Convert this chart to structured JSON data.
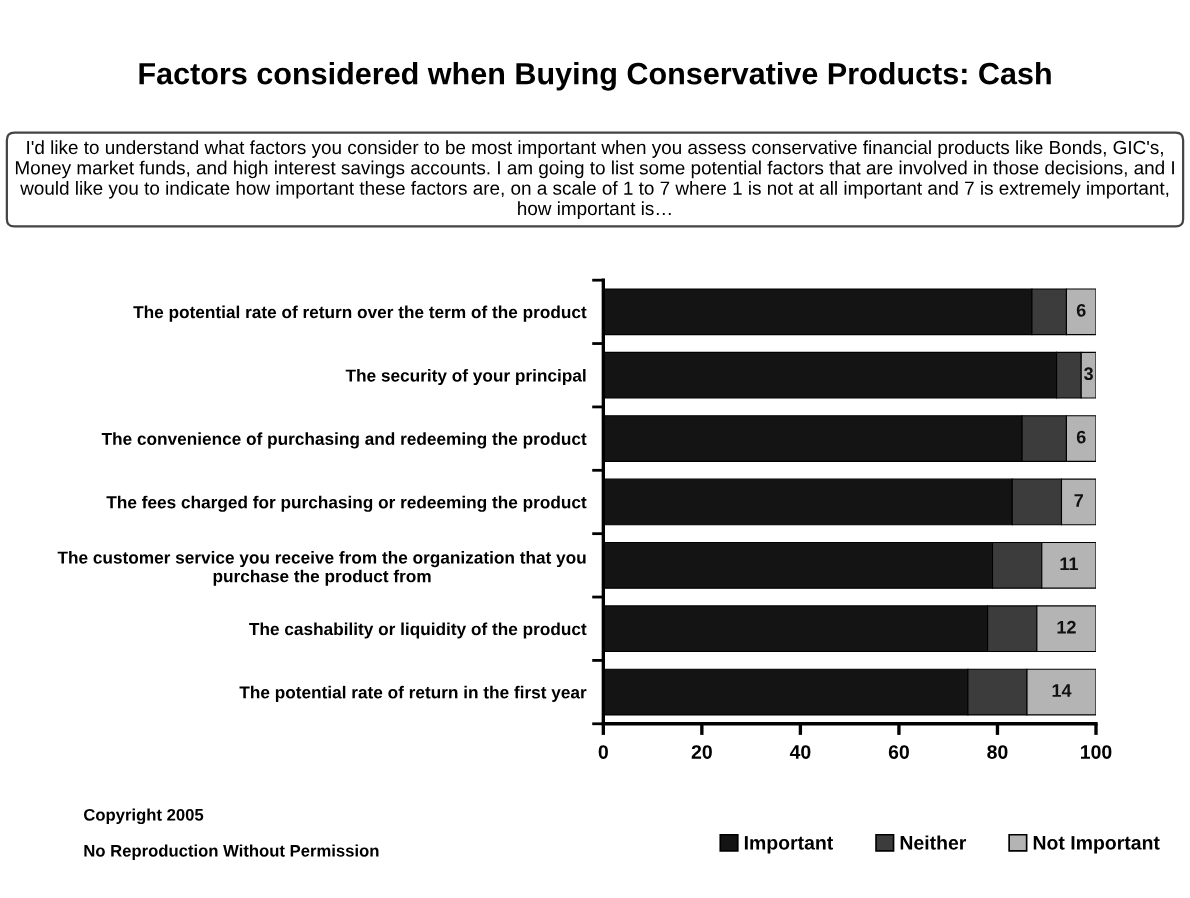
{
  "chart_data": {
    "type": "bar",
    "orientation": "horizontal",
    "stacked": true,
    "title": "Factors considered when Buying Conservative Products: Cash",
    "subtitle": "I'd like to understand what factors you consider to be most important when you assess conservative financial products like Bonds, GIC's, Money market funds, and high interest savings accounts. I am going to list some potential factors that are involved in those decisions, and I would like you to indicate how important these factors are, on a scale of 1 to 7 where 1 is not at all important and 7 is extremely important, how important is…",
    "categories": [
      "The potential rate of return over the term of the product",
      "The security of your principal",
      "The convenience of purchasing and redeeming the product",
      "The fees charged for purchasing or redeeming the product",
      "The customer service you receive from the organization that you\npurchase the product from",
      "The cashability or liquidity of the product",
      "The potential rate of return in the first year"
    ],
    "series": [
      {
        "name": "Important",
        "color": "#141414",
        "values": [
          87,
          92,
          85,
          83,
          79,
          78,
          74
        ]
      },
      {
        "name": "Neither",
        "color": "#3c3c3c",
        "values": [
          7,
          5,
          9,
          10,
          10,
          10,
          12
        ]
      },
      {
        "name": "Not Important",
        "color": "#b4b4b4",
        "values": [
          6,
          3,
          6,
          7,
          11,
          12,
          14
        ],
        "value_labels": [
          "6",
          "3",
          "6",
          "7",
          "11",
          "12",
          "14"
        ]
      }
    ],
    "xlim": [
      0,
      100
    ],
    "xticks": [
      0,
      20,
      40,
      60,
      80,
      100
    ],
    "legend": "bottom",
    "annotations": [
      "Copyright 2005",
      "No Reproduction Without Permission"
    ]
  }
}
